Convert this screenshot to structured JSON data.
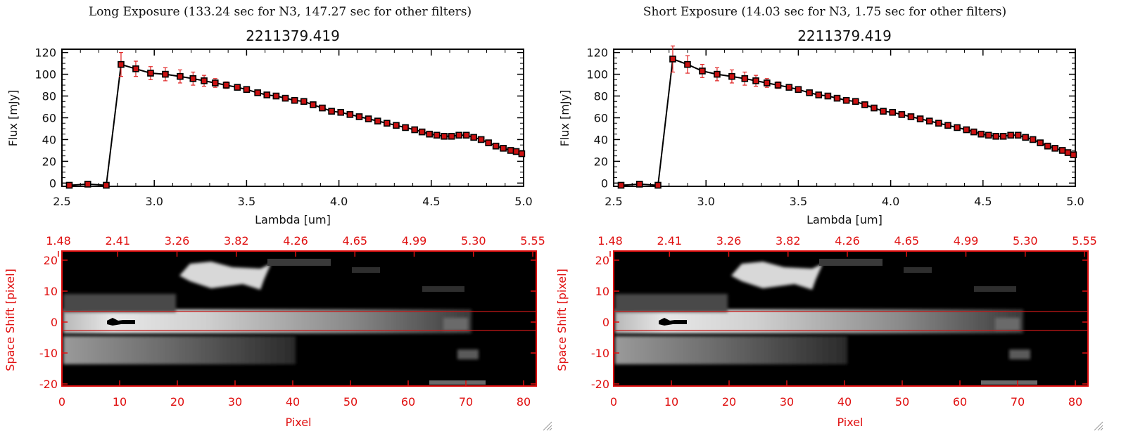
{
  "panels": [
    {
      "title": "Long Exposure (133.24 sec for N3, 147.27 sec for other filters)",
      "chart_data": {
        "type": "line",
        "title": "2211379.419",
        "xlabel": "Lambda [um]",
        "ylabel": "Flux [mJy]",
        "xlim": [
          2.5,
          5.0
        ],
        "ylim": [
          -3,
          123
        ],
        "xticks": [
          "2.5",
          "3.0",
          "3.5",
          "4.0",
          "4.5",
          "5.0"
        ],
        "yticks": [
          "0",
          "20",
          "40",
          "60",
          "80",
          "100",
          "120"
        ],
        "series": [
          {
            "x": [
              2.54,
              2.64,
              2.74,
              2.82,
              2.9,
              2.98,
              3.06,
              3.14,
              3.21,
              3.27,
              3.33,
              3.39,
              3.45,
              3.5,
              3.56,
              3.61,
              3.66,
              3.71,
              3.76,
              3.81,
              3.86,
              3.91,
              3.96,
              4.01,
              4.06,
              4.11,
              4.16,
              4.21,
              4.26,
              4.31,
              4.36,
              4.41,
              4.45,
              4.49,
              4.53,
              4.57,
              4.61,
              4.65,
              4.69,
              4.73,
              4.77,
              4.81,
              4.85,
              4.89,
              4.93,
              4.96,
              4.99
            ],
            "y": [
              -2,
              -1,
              -2,
              109,
              105,
              101,
              100,
              98,
              96,
              94,
              92,
              90,
              88,
              86,
              83,
              81,
              80,
              78,
              76,
              75,
              72,
              69,
              66,
              65,
              63,
              61,
              59,
              57,
              55,
              53,
              51,
              49,
              47,
              45,
              44,
              43,
              43,
              44,
              44,
              42,
              40,
              37,
              34,
              32,
              30,
              29,
              27
            ],
            "yerr": [
              1.5,
              1.5,
              1.5,
              11,
              7,
              6,
              6,
              6,
              6,
              5,
              4,
              3,
              2,
              2,
              2,
              2,
              2,
              2,
              2,
              2,
              2,
              2,
              2,
              2,
              2,
              2,
              2,
              2,
              2,
              2,
              2,
              2,
              2,
              2,
              2,
              2,
              2,
              2,
              2,
              2,
              2,
              2,
              2,
              2,
              2,
              2,
              2
            ]
          }
        ]
      },
      "image": {
        "xlabel": "Pixel",
        "ylabel": "Space Shift [pixel]",
        "xticks": [
          "0",
          "10",
          "20",
          "30",
          "40",
          "50",
          "60",
          "70",
          "80"
        ],
        "yticks": [
          "20",
          "10",
          "0",
          "-10",
          "-20"
        ],
        "top_ticks": [
          "1.48",
          "2.41",
          "3.26",
          "3.82",
          "4.26",
          "4.65",
          "4.99",
          "5.30",
          "5.55"
        ]
      }
    },
    {
      "title": "Short Exposure (14.03 sec for N3, 1.75 sec for other filters)",
      "chart_data": {
        "type": "line",
        "title": "2211379.419",
        "xlabel": "Lambda [um]",
        "ylabel": "Flux [mJy]",
        "xlim": [
          2.5,
          5.0
        ],
        "ylim": [
          -3,
          123
        ],
        "xticks": [
          "2.5",
          "3.0",
          "3.5",
          "4.0",
          "4.5",
          "5.0"
        ],
        "yticks": [
          "0",
          "20",
          "40",
          "60",
          "80",
          "100",
          "120"
        ],
        "series": [
          {
            "x": [
              2.54,
              2.64,
              2.74,
              2.82,
              2.9,
              2.98,
              3.06,
              3.14,
              3.21,
              3.27,
              3.33,
              3.39,
              3.45,
              3.5,
              3.56,
              3.61,
              3.66,
              3.71,
              3.76,
              3.81,
              3.86,
              3.91,
              3.96,
              4.01,
              4.06,
              4.11,
              4.16,
              4.21,
              4.26,
              4.31,
              4.36,
              4.41,
              4.45,
              4.49,
              4.53,
              4.57,
              4.61,
              4.65,
              4.69,
              4.73,
              4.77,
              4.81,
              4.85,
              4.89,
              4.93,
              4.96,
              4.99
            ],
            "y": [
              -2,
              -1,
              -2,
              114,
              109,
              103,
              100,
              98,
              96,
              94,
              92,
              90,
              88,
              86,
              83,
              81,
              80,
              78,
              76,
              75,
              72,
              69,
              66,
              65,
              63,
              61,
              59,
              57,
              55,
              53,
              51,
              49,
              47,
              45,
              44,
              43,
              43,
              44,
              44,
              42,
              40,
              37,
              34,
              32,
              30,
              28,
              26
            ],
            "yerr": [
              1.5,
              1.5,
              1.5,
              12,
              8,
              6,
              6,
              6,
              6,
              5,
              4,
              3,
              2,
              2,
              2,
              2,
              2,
              2,
              2,
              2,
              2,
              2,
              2,
              2,
              2,
              2,
              2,
              2,
              2,
              2,
              2,
              2,
              2,
              2,
              2,
              2,
              2,
              2,
              2,
              2,
              2,
              2,
              2,
              2,
              2,
              2,
              2
            ]
          }
        ]
      },
      "image": {
        "xlabel": "Pixel",
        "ylabel": "Space Shift [pixel]",
        "xticks": [
          "0",
          "10",
          "20",
          "30",
          "40",
          "50",
          "60",
          "70",
          "80"
        ],
        "yticks": [
          "20",
          "10",
          "0",
          "-10",
          "-20"
        ],
        "top_ticks": [
          "1.48",
          "2.41",
          "3.26",
          "3.82",
          "4.26",
          "4.65",
          "4.99",
          "5.30",
          "5.55"
        ]
      }
    }
  ],
  "colors": {
    "data_line": "#000000",
    "marker": "#cc1111",
    "errorbar": "#e02020",
    "image_axis": "#e01010",
    "aperture": "#c81818"
  }
}
